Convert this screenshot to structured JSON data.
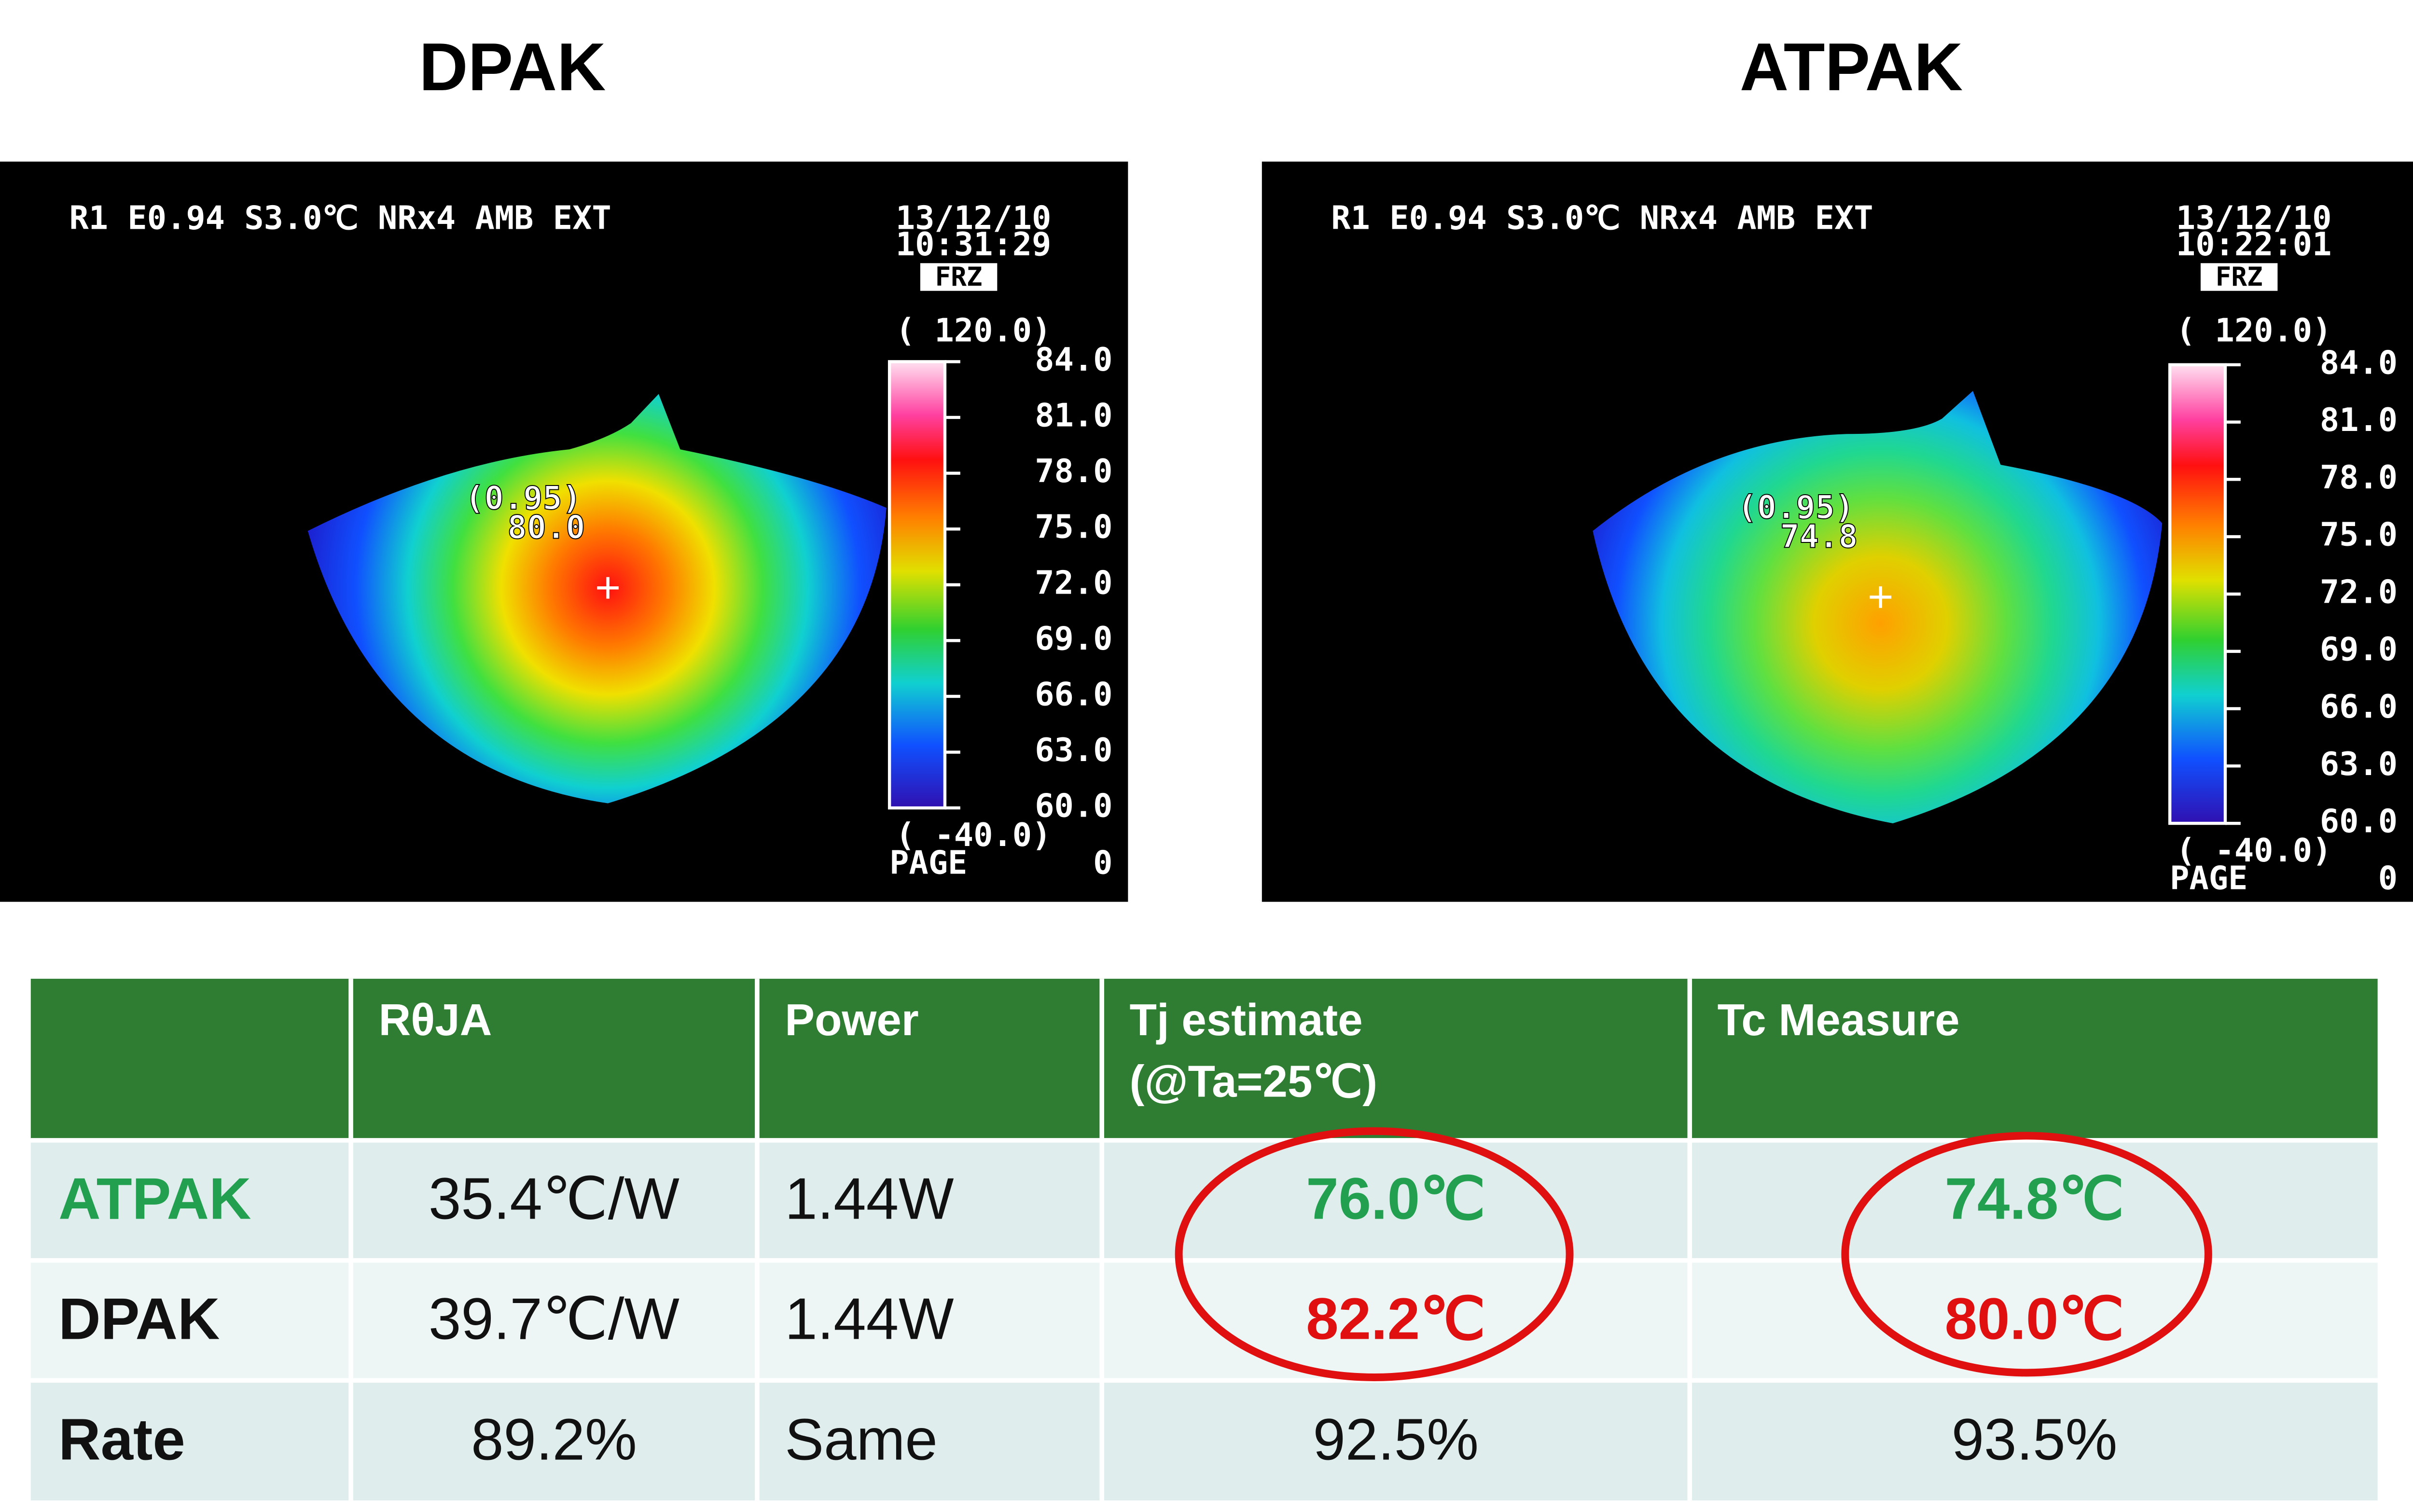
{
  "thermal": [
    {
      "title": "DPAK",
      "info": "R1 E0.94 S3.0℃  NRx4 AMB EXT",
      "date": "13/12/10",
      "time": "10:31:29",
      "mode": "FRZ",
      "range_max": "( 120.0)",
      "scale": [
        "84.0",
        "81.0",
        "78.0",
        "75.0",
        "72.0",
        "69.0",
        "66.0",
        "63.0",
        "60.0"
      ],
      "range_min": "( -40.0)",
      "page_label": "PAGE",
      "page": "0",
      "spot_emissivity": "(0.95)",
      "spot_temp": "80.0"
    },
    {
      "title": "ATPAK",
      "info": "R1 E0.94 S3.0℃  NRx4 AMB EXT",
      "date": "13/12/10",
      "time": "10:22:01",
      "mode": "FRZ",
      "range_max": "( 120.0)",
      "scale": [
        "84.0",
        "81.0",
        "78.0",
        "75.0",
        "72.0",
        "69.0",
        "66.0",
        "63.0",
        "60.0"
      ],
      "range_min": "( -40.0)",
      "page_label": "PAGE",
      "page": "0",
      "spot_emissivity": "(0.95)",
      "spot_temp": "74.8"
    }
  ],
  "table": {
    "header": [
      "RθJA",
      "Power",
      [
        "Tj estimate",
        "(@Ta=25℃)"
      ],
      "Tc Measure"
    ],
    "rows": [
      [
        "ATPAK",
        "35.4℃/W",
        "1.44W",
        "76.0℃",
        "74.8℃"
      ],
      [
        "DPAK",
        "39.7℃/W",
        "1.44W",
        "82.2℃",
        "80.0℃"
      ],
      [
        "Rate",
        "89.2%",
        "Same",
        "92.5%",
        "93.5%"
      ]
    ]
  }
}
